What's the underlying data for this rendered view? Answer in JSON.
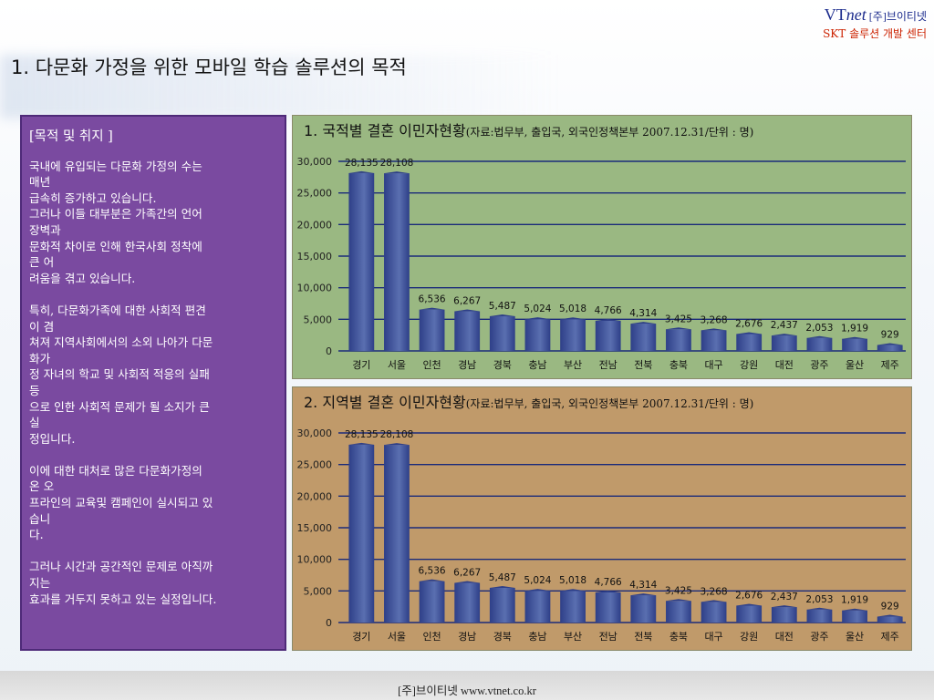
{
  "brand": {
    "vt": "VT",
    "net": "net",
    "company": " [주]브이티넷",
    "center": "SKT 솔루션 개발 센터"
  },
  "page_title": "1. 다문화 가정을 위한 모바일 학습 솔루션의 목적",
  "purpose": {
    "heading": "[목적 및 취지 ]",
    "paragraphs": [
      [
        "국내에 유입되는 다문화 가정의 수는",
        "매년",
        "급속히 증가하고 있습니다.",
        "그러나 이들 대부분은 가족간의 언어",
        "장벽과",
        "문화적 차이로 인해 한국사회 정착에",
        "큰 어",
        "려움을 겪고 있습니다."
      ],
      [
        "특히, 다문화가족에 대한 사회적 편견",
        "이 겸",
        "쳐져 지역사회에서의 소외 나아가 다문",
        "화가",
        "정 자녀의 학교 및 사회적 적응의 실패",
        "등",
        "으로 인한 사회적 문제가 될 소지가 큰",
        "실",
        "정입니다."
      ],
      [
        "이에 대한 대처로 많은 다문화가정의",
        "온 오",
        "프라인의 교육및 캠페인이 실시되고 있",
        "습니",
        "다."
      ],
      [
        "그러나 시간과 공간적인 문제로 아직까",
        "지는",
        "효과를 거두지 못하고 있는 실정입니다."
      ]
    ]
  },
  "chart_data": [
    {
      "type": "bar",
      "title": "1. 국적별 결혼 이민자현황",
      "subtitle": "(자료:법무부, 출입국, 외국인정책본부 2007.12.31/단위 : 명)",
      "categories": [
        "경기",
        "서울",
        "인천",
        "경남",
        "경북",
        "충남",
        "부산",
        "전남",
        "전북",
        "충북",
        "대구",
        "강원",
        "대전",
        "광주",
        "울산",
        "제주"
      ],
      "values": [
        28135,
        28108,
        6536,
        6267,
        5487,
        5024,
        5018,
        4766,
        4314,
        3425,
        3268,
        2676,
        2437,
        2053,
        1919,
        929
      ],
      "value_labels": [
        "28,135",
        "28,108",
        "6,536",
        "6,267",
        "5,487",
        "5,024",
        "5,018",
        "4,766",
        "4,314",
        "3,425",
        "3,268",
        "2,676",
        "2,437",
        "2,053",
        "1,919",
        "929"
      ],
      "y_ticks": [
        "0",
        "5,000",
        "10,000",
        "15,000",
        "20,000",
        "25,000",
        "30,000"
      ],
      "ylim": [
        0,
        30000
      ],
      "grid": true,
      "colors": {
        "bar": "#5a6fb0",
        "bar_dark": "#2e3f88",
        "grid": "#1a2a7a",
        "background": "#9ab882"
      }
    },
    {
      "type": "bar",
      "title": "2. 지역별 결혼 이민자현황",
      "subtitle": "(자료:법무부, 출입국, 외국인정책본부 2007.12.31/단위 : 명)",
      "categories": [
        "경기",
        "서울",
        "인천",
        "경남",
        "경북",
        "충남",
        "부산",
        "전남",
        "전북",
        "충북",
        "대구",
        "강원",
        "대전",
        "광주",
        "울산",
        "제주"
      ],
      "values": [
        28135,
        28108,
        6536,
        6267,
        5487,
        5024,
        5018,
        4766,
        4314,
        3425,
        3268,
        2676,
        2437,
        2053,
        1919,
        929
      ],
      "value_labels": [
        "28,135",
        "28,108",
        "6,536",
        "6,267",
        "5,487",
        "5,024",
        "5,018",
        "4,766",
        "4,314",
        "3,425",
        "3,268",
        "2,676",
        "2,437",
        "2,053",
        "1,919",
        "929"
      ],
      "y_ticks": [
        "0",
        "5,000",
        "10,000",
        "15,000",
        "20,000",
        "25,000",
        "30,000"
      ],
      "ylim": [
        0,
        30000
      ],
      "grid": true,
      "colors": {
        "bar": "#5a6fb0",
        "bar_dark": "#2e3f88",
        "grid": "#1a2a7a",
        "background": "#c09a6a"
      }
    }
  ],
  "footer": "[주]브이티넷 www.vtnet.co.kr"
}
